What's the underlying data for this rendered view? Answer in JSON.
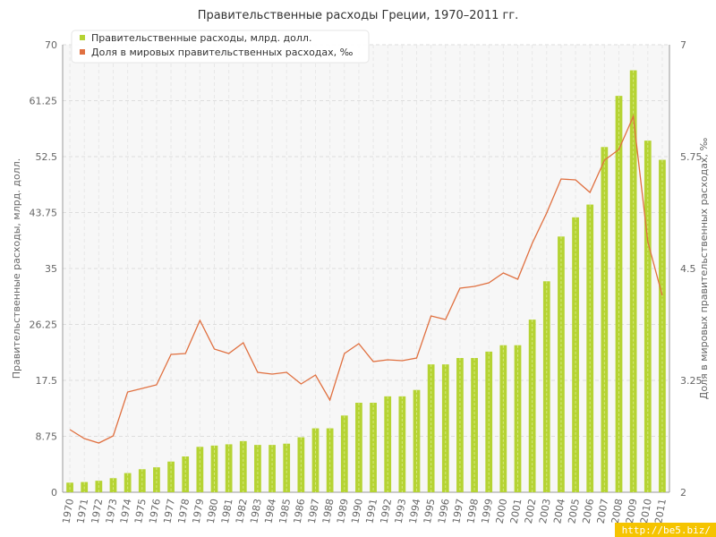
{
  "chart_data": {
    "type": "bar",
    "title": "Правительственные расходы Греции, 1970–2011 гг.",
    "categories": [
      "1970",
      "1971",
      "1972",
      "1973",
      "1974",
      "1975",
      "1976",
      "1977",
      "1978",
      "1979",
      "1980",
      "1981",
      "1982",
      "1983",
      "1984",
      "1985",
      "1986",
      "1987",
      "1988",
      "1989",
      "1990",
      "1991",
      "1992",
      "1993",
      "1994",
      "1995",
      "1996",
      "1997",
      "1998",
      "1999",
      "2000",
      "2001",
      "2002",
      "2003",
      "2004",
      "2005",
      "2006",
      "2007",
      "2008",
      "2009",
      "2010",
      "2011"
    ],
    "ylabel_left": "Правительственные расходы, млрд. долл.",
    "ylabel_right": "Доля в мировых правительственных расходах, ‰",
    "ylim_left": [
      0,
      70
    ],
    "ylim_right": [
      2,
      7
    ],
    "left_ticks": [
      "0",
      "8.75",
      "17.5",
      "26.25",
      "35",
      "43.75",
      "52.5",
      "61.25",
      "70"
    ],
    "right_ticks": [
      "2",
      "3.25",
      "4.5",
      "5.75",
      "7"
    ],
    "grid": true,
    "legend_position": "top-left",
    "series": [
      {
        "name": "Правительственные расходы, млрд. долл.",
        "type": "bar",
        "axis": "left",
        "color": "#b5d333",
        "values": [
          1.5,
          1.6,
          1.8,
          2.2,
          3.0,
          3.6,
          3.9,
          4.8,
          5.6,
          7.1,
          7.3,
          7.5,
          8.0,
          7.4,
          7.4,
          7.6,
          8.6,
          10.0,
          10.0,
          12.0,
          14.0,
          14.0,
          15.0,
          15.0,
          16.0,
          20.0,
          20.0,
          21.0,
          21.0,
          22.0,
          23.0,
          23.0,
          27.0,
          33.0,
          40.0,
          43.0,
          45.0,
          54.0,
          62.0,
          66.0,
          55.0,
          52.0
        ]
      },
      {
        "name": "Доля в мировых правительственных расходах, ‰",
        "type": "line",
        "axis": "right",
        "color": "#e07040",
        "values": [
          2.7,
          2.6,
          2.55,
          2.63,
          3.12,
          3.16,
          3.2,
          3.54,
          3.55,
          3.92,
          3.6,
          3.55,
          3.67,
          3.34,
          3.32,
          3.34,
          3.21,
          3.31,
          3.03,
          3.55,
          3.66,
          3.46,
          3.48,
          3.47,
          3.5,
          3.97,
          3.93,
          4.28,
          4.3,
          4.34,
          4.45,
          4.38,
          4.78,
          5.12,
          5.5,
          5.49,
          5.35,
          5.71,
          5.83,
          6.2,
          4.8,
          4.2
        ]
      }
    ]
  },
  "watermark": "http://be5.biz/"
}
